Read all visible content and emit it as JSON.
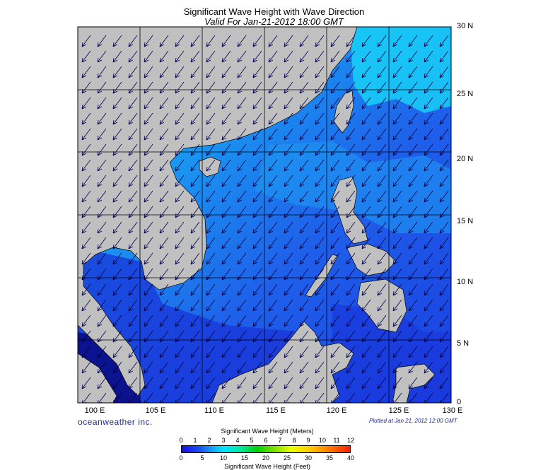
{
  "title": "Significant Wave Height with Wave Direction",
  "subtitle": "Valid For Jan-21-2012 18:00 GMT",
  "brand": "oceanweather inc.",
  "plotted": "Plotted at Jan 21, 2012 12:00 GMT",
  "map": {
    "lon_range": [
      100,
      130
    ],
    "lat_range": [
      0,
      30
    ],
    "lat_labels": [
      "30 N",
      "25 N",
      "20 N",
      "15 N",
      "10 N",
      "5 N",
      "0"
    ],
    "lon_labels": [
      "100 E",
      "105 E",
      "110 E",
      "115 E",
      "120 E",
      "125 E",
      "130 E"
    ],
    "land_color": "#c0c0c0",
    "grid": true,
    "wave_direction": "toward south-southwest (northeast monsoon)"
  },
  "legend": {
    "meters_title": "Significant Wave Height (Meters)",
    "feet_title": "Significant Wave Height (Feet)",
    "meters_ticks": [
      "0",
      "1",
      "2",
      "3",
      "4",
      "5",
      "6",
      "7",
      "8",
      "9",
      "10",
      "11",
      "12"
    ],
    "feet_ticks": [
      "0",
      "5",
      "10",
      "15",
      "20",
      "25",
      "30",
      "35",
      "40"
    ]
  }
}
